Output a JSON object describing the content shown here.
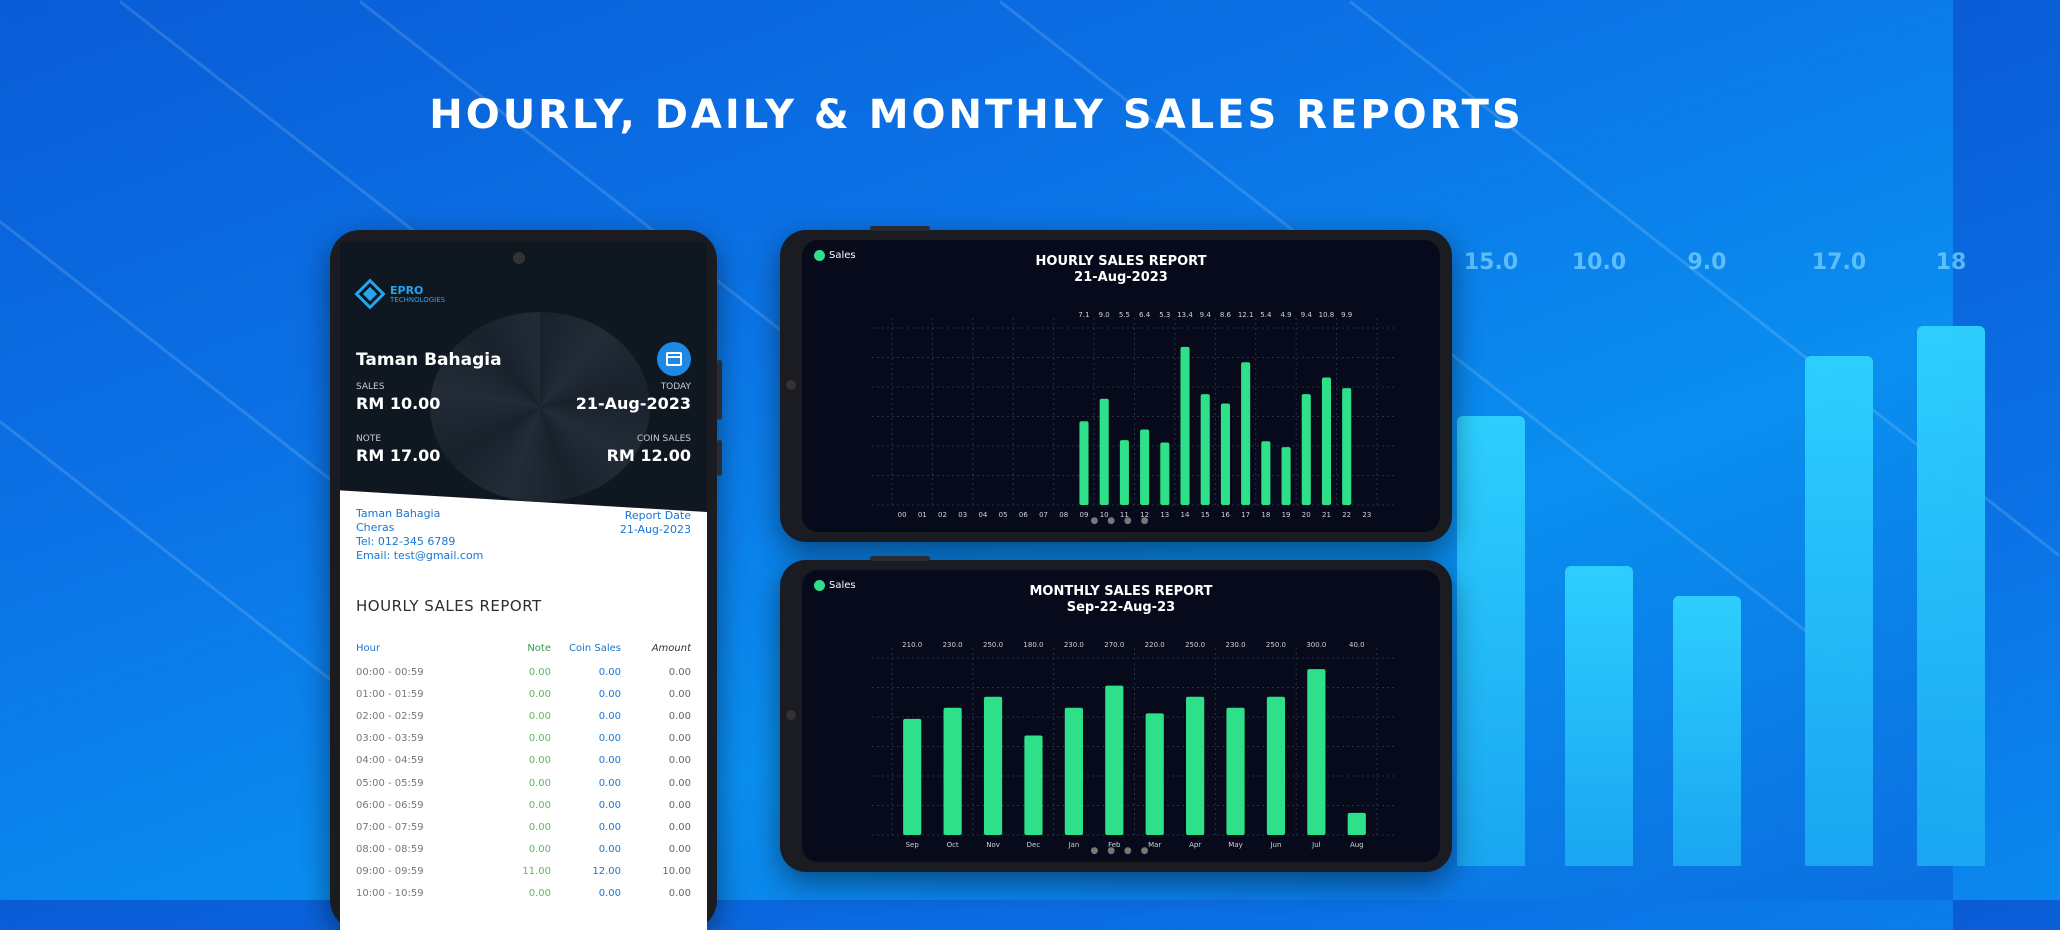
{
  "headline": "HOURLY, DAILY & MONTHLY SALES REPORTS",
  "colors": {
    "bar": "#2fe08a",
    "accent": "#1e88e5",
    "background": "#0b73e6"
  },
  "bg_chart": {
    "labels": [
      "15.0",
      "10.0",
      "9.0",
      "17.0",
      "18"
    ],
    "values": [
      15,
      10,
      9,
      17,
      18
    ]
  },
  "dashboard": {
    "logo_text": "EPRO",
    "logo_sub": "TECHNOLOGIES",
    "store_name": "Taman Bahagia",
    "sales_label": "SALES",
    "sales_value": "RM 10.00",
    "today_label": "TODAY",
    "today_value": "21-Aug-2023",
    "note_label": "NOTE",
    "note_value": "RM 17.00",
    "coin_label": "COIN SALES",
    "coin_value": "RM 12.00"
  },
  "receipt": {
    "lines": [
      "Taman Bahagia",
      "Cheras",
      "Tel: 012-345 6789",
      "Email: test@gmail.com"
    ],
    "report_date_label": "Report Date",
    "report_date_value": "21-Aug-2023",
    "title": "HOURLY SALES REPORT",
    "columns": [
      "Hour",
      "Note",
      "Coin Sales",
      "Amount"
    ],
    "rows": [
      [
        "00:00 - 00:59",
        "0.00",
        "0.00",
        "0.00"
      ],
      [
        "01:00 - 01:59",
        "0.00",
        "0.00",
        "0.00"
      ],
      [
        "02:00 - 02:59",
        "0.00",
        "0.00",
        "0.00"
      ],
      [
        "03:00 - 03:59",
        "0.00",
        "0.00",
        "0.00"
      ],
      [
        "04:00 - 04:59",
        "0.00",
        "0.00",
        "0.00"
      ],
      [
        "05:00 - 05:59",
        "0.00",
        "0.00",
        "0.00"
      ],
      [
        "06:00 - 06:59",
        "0.00",
        "0.00",
        "0.00"
      ],
      [
        "07:00 - 07:59",
        "0.00",
        "0.00",
        "0.00"
      ],
      [
        "08:00 - 08:59",
        "0.00",
        "0.00",
        "0.00"
      ],
      [
        "09:00 - 09:59",
        "11.00",
        "12.00",
        "10.00"
      ],
      [
        "10:00 - 10:59",
        "0.00",
        "0.00",
        "0.00"
      ]
    ]
  },
  "chart_data": [
    {
      "type": "bar",
      "title": "HOURLY SALES REPORT",
      "subtitle": "21-Aug-2023",
      "legend": "Sales",
      "legend_position": "top-left",
      "grid": true,
      "categories": [
        "00",
        "01",
        "02",
        "03",
        "04",
        "05",
        "06",
        "07",
        "08",
        "09",
        "10",
        "11",
        "12",
        "13",
        "14",
        "15",
        "16",
        "17",
        "18",
        "19",
        "20",
        "21",
        "22",
        "23"
      ],
      "values": [
        0,
        0,
        0,
        0,
        0,
        0,
        0,
        0,
        0,
        7.1,
        9.0,
        5.5,
        6.4,
        5.3,
        13.4,
        9.4,
        8.6,
        12.1,
        5.4,
        4.9,
        9.4,
        10.8,
        9.9,
        0
      ],
      "value_labels": [
        "",
        "",
        "",
        "",
        "",
        "",
        "",
        "",
        "",
        "7.1",
        "9.0",
        "5.5",
        "6.4",
        "5.3",
        "13.4",
        "9.4",
        "8.6",
        "12.1",
        "5.4",
        "4.9",
        "9.4",
        "10.8",
        "9.9",
        ""
      ],
      "ylim": [
        0,
        15
      ]
    },
    {
      "type": "bar",
      "title": "MONTHLY SALES REPORT",
      "subtitle": "Sep-22-Aug-23",
      "legend": "Sales",
      "legend_position": "top-left",
      "grid": true,
      "categories": [
        "Sep",
        "Oct",
        "Nov",
        "Dec",
        "Jan",
        "Feb",
        "Mar",
        "Apr",
        "May",
        "Jun",
        "Jul",
        "Aug"
      ],
      "values": [
        210,
        230,
        250,
        180,
        230,
        270,
        220,
        250,
        230,
        250,
        300,
        40
      ],
      "value_labels": [
        "210.0",
        "230.0",
        "250.0",
        "180.0",
        "230.0",
        "270.0",
        "220.0",
        "250.0",
        "230.0",
        "250.0",
        "300.0",
        "40.0"
      ],
      "ylim": [
        0,
        320
      ]
    }
  ]
}
